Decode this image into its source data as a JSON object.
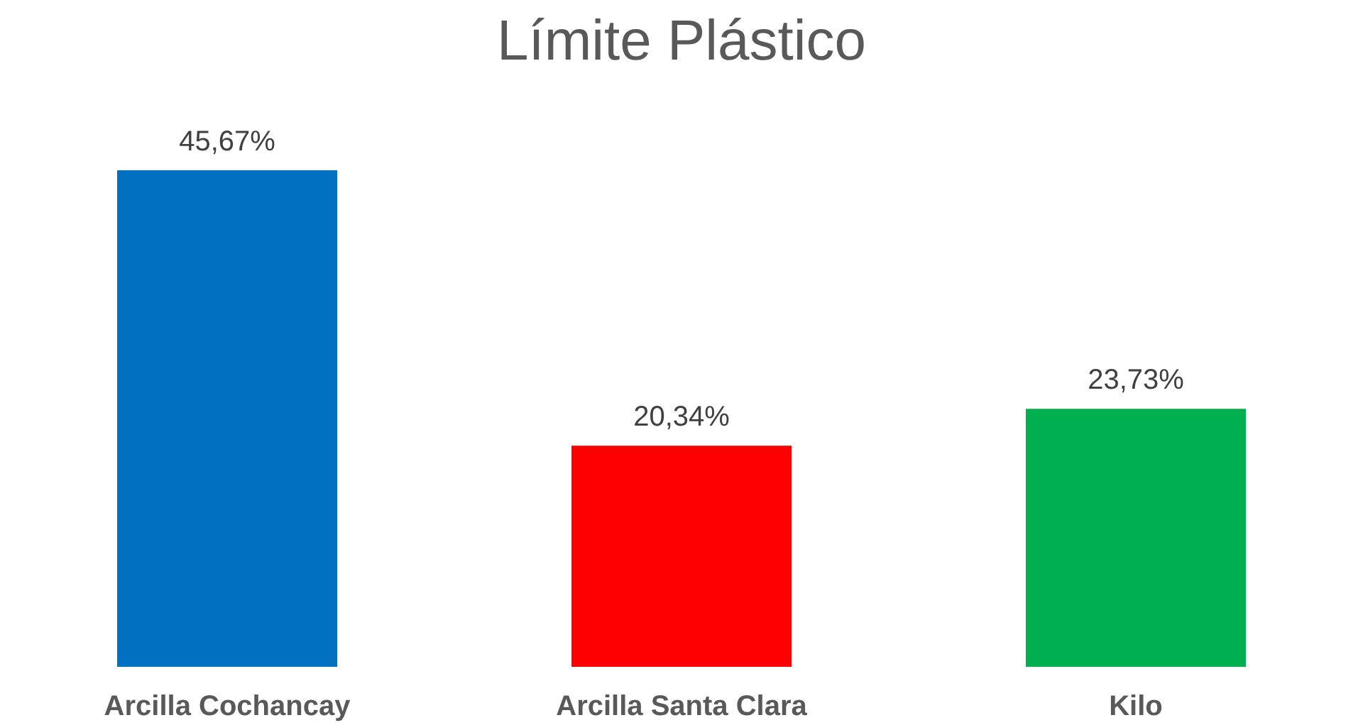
{
  "chart_data": {
    "type": "bar",
    "title": "Límite Plástico",
    "categories": [
      "Arcilla Cochancay",
      "Arcilla Santa Clara",
      "Kilo"
    ],
    "values": [
      45.67,
      20.34,
      23.73
    ],
    "colors": [
      "#0070c0",
      "#ff0000",
      "#00b050"
    ],
    "value_labels": [
      "45,67%",
      "20,34%",
      "23,73%"
    ]
  }
}
